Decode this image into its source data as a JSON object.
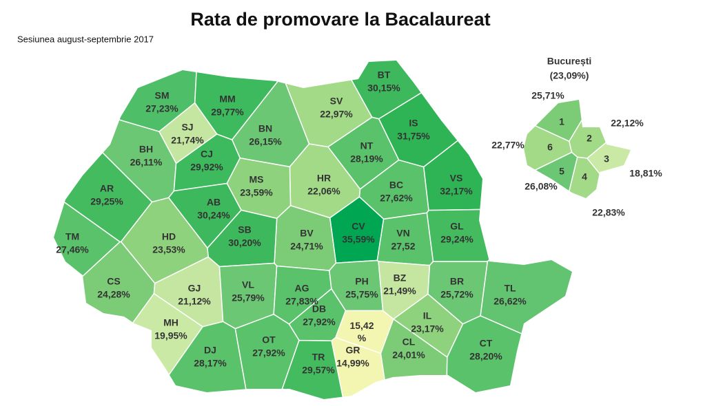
{
  "title": "Rata de promovare la Bacalaureat",
  "subtitle": "Sesiunea august-septembrie 2017",
  "counties": [
    {
      "code": "SM",
      "value": "27,23%",
      "color": "#4fbe68"
    },
    {
      "code": "MM",
      "value": "29,77%",
      "color": "#3dba5d"
    },
    {
      "code": "SJ",
      "value": "21,74%",
      "color": "#c4e6a0"
    },
    {
      "code": "BN",
      "value": "26,15%",
      "color": "#6cc774"
    },
    {
      "code": "SV",
      "value": "22,97%",
      "color": "#a3da88"
    },
    {
      "code": "BT",
      "value": "30,15%",
      "color": "#3db85c"
    },
    {
      "code": "BH",
      "value": "26,11%",
      "color": "#6cc774"
    },
    {
      "code": "CJ",
      "value": "29,92%",
      "color": "#3dba5d"
    },
    {
      "code": "IS",
      "value": "31,75%",
      "color": "#2fb455"
    },
    {
      "code": "NT",
      "value": "28,19%",
      "color": "#5ac26b"
    },
    {
      "code": "HR",
      "value": "22,06%",
      "color": "#a3da88"
    },
    {
      "code": "MS",
      "value": "23,59%",
      "color": "#8fd27e"
    },
    {
      "code": "AR",
      "value": "29,25%",
      "color": "#45bb60"
    },
    {
      "code": "AB",
      "value": "30,24%",
      "color": "#3db85c"
    },
    {
      "code": "BC",
      "value": "27,62%",
      "color": "#5ac26b"
    },
    {
      "code": "VS",
      "value": "32,17%",
      "color": "#2fb455"
    },
    {
      "code": "CV",
      "value": "35,59%",
      "color": "#00a651"
    },
    {
      "code": "BV",
      "value": "24,71%",
      "color": "#7ccc77"
    },
    {
      "code": "SB",
      "value": "30,20%",
      "color": "#3db85c"
    },
    {
      "code": "HD",
      "value": "23,53%",
      "color": "#8fd27e"
    },
    {
      "code": "TM",
      "value": "27,46%",
      "color": "#5ac26b"
    },
    {
      "code": "VN",
      "value": "27,52",
      "color": "#5ac26b"
    },
    {
      "code": "GL",
      "value": "29,24%",
      "color": "#45bb60"
    },
    {
      "code": "CS",
      "value": "24,28%",
      "color": "#7ccc77"
    },
    {
      "code": "GJ",
      "value": "21,12%",
      "color": "#c4e6a0"
    },
    {
      "code": "VL",
      "value": "25,79%",
      "color": "#6cc774"
    },
    {
      "code": "AG",
      "value": "27,83%",
      "color": "#5ac26b"
    },
    {
      "code": "PH",
      "value": "25,75%",
      "color": "#6cc774"
    },
    {
      "code": "BZ",
      "value": "21,49%",
      "color": "#c4e6a0"
    },
    {
      "code": "BR",
      "value": "25,72%",
      "color": "#6cc774"
    },
    {
      "code": "TL",
      "value": "26,62%",
      "color": "#62c470"
    },
    {
      "code": "DB",
      "value": "27,92%",
      "color": "#5ac26b"
    },
    {
      "code": "MH",
      "value": "19,95%",
      "color": "#c9e9a5"
    },
    {
      "code": "IL",
      "value": "23,17%",
      "color": "#8fd27e"
    },
    {
      "code": "GR",
      "value": "14,99%",
      "color": "#f3f6b0"
    },
    {
      "code": "CL",
      "value": "24,01%",
      "color": "#7ccc77"
    },
    {
      "code": "CT",
      "value": "28,20%",
      "color": "#5ac26b"
    },
    {
      "code": "DJ",
      "value": "28,17%",
      "color": "#5ac26b"
    },
    {
      "code": "OT",
      "value": "27,92%",
      "color": "#5ac26b"
    },
    {
      "code": "TR",
      "value": "29,57%",
      "color": "#45bb60"
    },
    {
      "code": null,
      "value": "15,42 %",
      "color": "#f3f6b0"
    }
  ],
  "bucharest": {
    "title": "București",
    "value": "(23,09%)",
    "sectors": [
      {
        "number": 1,
        "value": "25,71%",
        "color": "#7ccc77"
      },
      {
        "number": 2,
        "value": "22,12%",
        "color": "#a3da88"
      },
      {
        "number": 3,
        "value": "18,81%",
        "color": "#c9e9a5"
      },
      {
        "number": 4,
        "value": "22,83%",
        "color": "#a3da88"
      },
      {
        "number": 5,
        "value": "26,08%",
        "color": "#6cc774"
      },
      {
        "number": 6,
        "value": "22,77%",
        "color": "#a3da88"
      }
    ]
  }
}
